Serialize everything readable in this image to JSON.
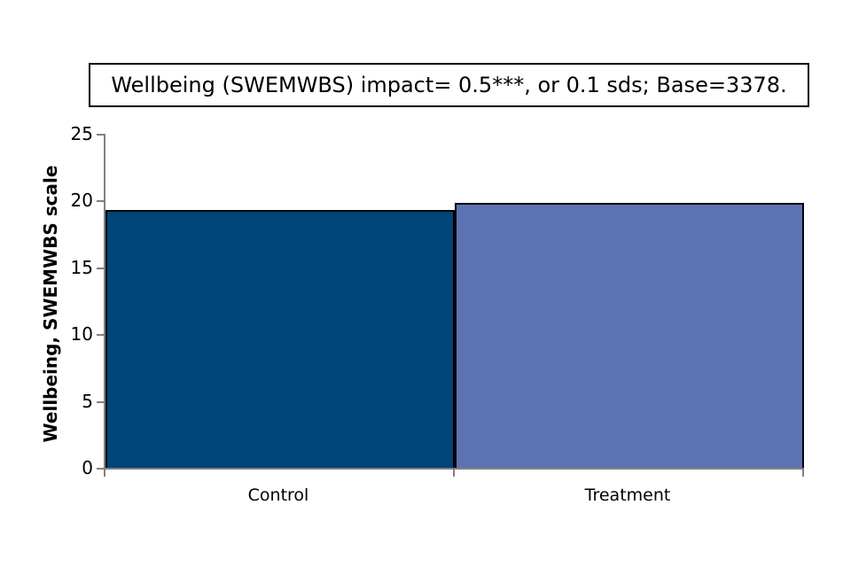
{
  "chart_data": {
    "type": "bar",
    "title": "Wellbeing (SWEMWBS) impact= 0.5***, or 0.1 sds; Base=3378.",
    "categories": [
      "Control",
      "Treatment"
    ],
    "values": [
      19.3,
      19.8
    ],
    "bar_colors": [
      "#004577",
      "#5E73B2"
    ],
    "bar_border_color": "#000000",
    "xlabel": "",
    "ylabel": "Wellbeing, SWEMWBS scale",
    "ylim": [
      0,
      25
    ],
    "yticks": [
      0,
      5,
      10,
      15,
      20,
      25
    ],
    "grid": "off",
    "legend": "none",
    "axis_color": "#808080",
    "title_border_color": "#000000"
  }
}
